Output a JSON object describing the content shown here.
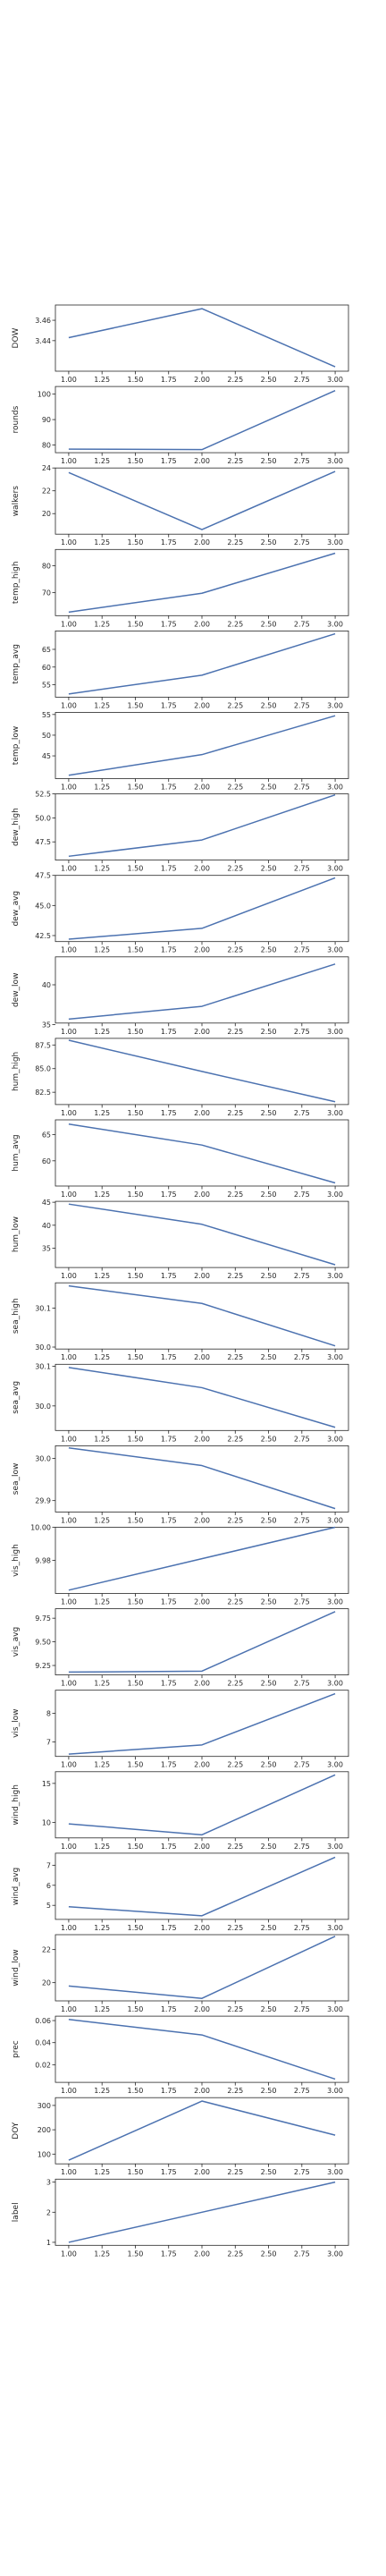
{
  "chart_data": [
    {
      "type": "line",
      "ylabel": "DOW",
      "x": [
        1,
        2,
        3
      ],
      "values": [
        3.4429,
        3.4714,
        3.4143
      ],
      "ylim": [
        3.41,
        3.475
      ],
      "yticks": [
        3.44,
        3.46
      ],
      "ytick_labels": [
        "3.44",
        "3.46"
      ]
    },
    {
      "type": "line",
      "ylabel": "rounds",
      "x": [
        1,
        2,
        3
      ],
      "values": [
        78.4,
        78.2,
        101.4
      ],
      "ylim": [
        77,
        103
      ],
      "yticks": [
        80,
        90,
        100
      ],
      "ytick_labels": [
        "80",
        "90",
        "100"
      ]
    },
    {
      "type": "line",
      "ylabel": "walkers",
      "x": [
        1,
        2,
        3
      ],
      "values": [
        23.6,
        18.6,
        23.7
      ],
      "ylim": [
        18.2,
        24
      ],
      "yticks": [
        20,
        22,
        24
      ],
      "ytick_labels": [
        "20",
        "22",
        "24"
      ]
    },
    {
      "type": "line",
      "ylabel": "temp_high",
      "x": [
        1,
        2,
        3
      ],
      "values": [
        62.8,
        69.8,
        84.6
      ],
      "ylim": [
        61.5,
        86
      ],
      "yticks": [
        70,
        80
      ],
      "ytick_labels": [
        "70",
        "80"
      ]
    },
    {
      "type": "line",
      "ylabel": "temp_avg",
      "x": [
        1,
        2,
        3
      ],
      "values": [
        52.4,
        57.7,
        69.4
      ],
      "ylim": [
        51.5,
        70.2
      ],
      "yticks": [
        55,
        60,
        65
      ],
      "ytick_labels": [
        "55",
        "60",
        "65"
      ]
    },
    {
      "type": "line",
      "ylabel": "temp_low",
      "x": [
        1,
        2,
        3
      ],
      "values": [
        40.3,
        45.3,
        54.7
      ],
      "ylim": [
        39.5,
        55.5
      ],
      "yticks": [
        45,
        50,
        55
      ],
      "ytick_labels": [
        "45",
        "50",
        "55"
      ]
    },
    {
      "type": "line",
      "ylabel": "dew_high",
      "x": [
        1,
        2,
        3
      ],
      "values": [
        46.0,
        47.7,
        52.4
      ],
      "ylim": [
        45.6,
        52.5
      ],
      "yticks": [
        47.5,
        50.0,
        52.5
      ],
      "ytick_labels": [
        "47.5",
        "50.0",
        "52.5"
      ]
    },
    {
      "type": "line",
      "ylabel": "dew_avg",
      "x": [
        1,
        2,
        3
      ],
      "values": [
        42.2,
        43.1,
        47.3
      ],
      "ylim": [
        42.0,
        47.5
      ],
      "yticks": [
        42.5,
        45.0,
        47.5
      ],
      "ytick_labels": [
        "42.5",
        "45.0",
        "47.5"
      ]
    },
    {
      "type": "line",
      "ylabel": "dew_low",
      "x": [
        1,
        2,
        3
      ],
      "values": [
        35.7,
        37.3,
        42.6
      ],
      "ylim": [
        35.2,
        43.5
      ],
      "yticks": [
        35,
        40
      ],
      "ytick_labels": [
        "35",
        "40"
      ]
    },
    {
      "type": "line",
      "ylabel": "hum_high",
      "x": [
        1,
        2,
        3
      ],
      "values": [
        88.0,
        84.7,
        81.5
      ],
      "ylim": [
        81.2,
        88.2
      ],
      "yticks": [
        82.5,
        85.0,
        87.5
      ],
      "ytick_labels": [
        "82.5",
        "85.0",
        "87.5"
      ]
    },
    {
      "type": "line",
      "ylabel": "hum_avg",
      "x": [
        1,
        2,
        3
      ],
      "values": [
        67.0,
        63.0,
        55.8
      ],
      "ylim": [
        55.2,
        67.8
      ],
      "yticks": [
        60,
        65
      ],
      "ytick_labels": [
        "60",
        "65"
      ]
    },
    {
      "type": "line",
      "ylabel": "hum_low",
      "x": [
        1,
        2,
        3
      ],
      "values": [
        44.6,
        40.2,
        31.4
      ],
      "ylim": [
        30.8,
        45.2
      ],
      "yticks": [
        35,
        40,
        45
      ],
      "ytick_labels": [
        "35",
        "40",
        "45"
      ]
    },
    {
      "type": "line",
      "ylabel": "sea_high",
      "x": [
        1,
        2,
        3
      ],
      "values": [
        30.157,
        30.112,
        30.003
      ],
      "ylim": [
        29.995,
        30.165
      ],
      "yticks": [
        30.0,
        30.1
      ],
      "ytick_labels": [
        "30.0",
        "30.1"
      ]
    },
    {
      "type": "line",
      "ylabel": "sea_avg",
      "x": [
        1,
        2,
        3
      ],
      "values": [
        30.097,
        30.046,
        29.946
      ],
      "ylim": [
        29.938,
        30.105
      ],
      "yticks": [
        30.0,
        30.1
      ],
      "ytick_labels": [
        "30.0",
        "30.1"
      ]
    },
    {
      "type": "line",
      "ylabel": "sea_low",
      "x": [
        1,
        2,
        3
      ],
      "values": [
        30.025,
        29.983,
        29.881
      ],
      "ylim": [
        29.873,
        30.03
      ],
      "yticks": [
        29.9,
        30.0
      ],
      "ytick_labels": [
        "29.9",
        "30.0"
      ]
    },
    {
      "type": "line",
      "ylabel": "vis_high",
      "x": [
        1,
        2,
        3
      ],
      "values": [
        9.962,
        9.981,
        10.0
      ],
      "ylim": [
        9.96,
        10.0
      ],
      "yticks": [
        9.98,
        10.0
      ],
      "ytick_labels": [
        "9.98",
        "10.00"
      ]
    },
    {
      "type": "line",
      "ylabel": "vis_avg",
      "x": [
        1,
        2,
        3
      ],
      "values": [
        9.18,
        9.19,
        9.82
      ],
      "ylim": [
        9.15,
        9.85
      ],
      "yticks": [
        9.25,
        9.5,
        9.75
      ],
      "ytick_labels": [
        "9.25",
        "9.50",
        "9.75"
      ]
    },
    {
      "type": "line",
      "ylabel": "vis_low",
      "x": [
        1,
        2,
        3
      ],
      "values": [
        6.58,
        6.9,
        8.68
      ],
      "ylim": [
        6.5,
        8.8
      ],
      "yticks": [
        7,
        8
      ],
      "ytick_labels": [
        "7",
        "8"
      ]
    },
    {
      "type": "line",
      "ylabel": "wind_high",
      "x": [
        1,
        2,
        3
      ],
      "values": [
        9.8,
        8.4,
        16.1
      ],
      "ylim": [
        8.0,
        16.5
      ],
      "yticks": [
        10,
        15
      ],
      "ytick_labels": [
        "10",
        "15"
      ]
    },
    {
      "type": "line",
      "ylabel": "wind_avg",
      "x": [
        1,
        2,
        3
      ],
      "values": [
        4.93,
        4.48,
        7.4
      ],
      "ylim": [
        4.3,
        7.6
      ],
      "yticks": [
        5,
        6,
        7
      ],
      "ytick_labels": [
        "5",
        "6",
        "7"
      ]
    },
    {
      "type": "line",
      "ylabel": "wind_low",
      "x": [
        1,
        2,
        3
      ],
      "values": [
        19.8,
        19.05,
        22.8
      ],
      "ylim": [
        18.9,
        22.9
      ],
      "yticks": [
        20,
        22
      ],
      "ytick_labels": [
        "20",
        "22"
      ]
    },
    {
      "type": "line",
      "ylabel": "prec",
      "x": [
        1,
        2,
        3
      ],
      "values": [
        0.061,
        0.047,
        0.007
      ],
      "ylim": [
        0.004,
        0.064
      ],
      "yticks": [
        0.02,
        0.04,
        0.06
      ],
      "ytick_labels": [
        "0.02",
        "0.04",
        "0.06"
      ]
    },
    {
      "type": "line",
      "ylabel": "DOY",
      "x": [
        1,
        2,
        3
      ],
      "values": [
        75,
        318,
        178
      ],
      "ylim": [
        60,
        332
      ],
      "yticks": [
        100,
        200,
        300
      ],
      "ytick_labels": [
        "100",
        "200",
        "300"
      ]
    },
    {
      "type": "line",
      "ylabel": "label",
      "x": [
        1,
        2,
        3
      ],
      "values": [
        1,
        2,
        3
      ],
      "ylim": [
        0.9,
        3.1
      ],
      "yticks": [
        1,
        2,
        3
      ],
      "ytick_labels": [
        "1",
        "2",
        "3"
      ]
    }
  ],
  "shared_x": {
    "xlim": [
      0.9,
      3.1
    ],
    "ticks": [
      1.0,
      1.25,
      1.5,
      1.75,
      2.0,
      2.25,
      2.5,
      2.75,
      3.0
    ],
    "tick_labels": [
      "1.00",
      "1.25",
      "1.50",
      "1.75",
      "2.00",
      "2.25",
      "2.50",
      "2.75",
      "3.00"
    ]
  },
  "colors": {
    "line": "#4c72b0",
    "axis": "#262626"
  }
}
